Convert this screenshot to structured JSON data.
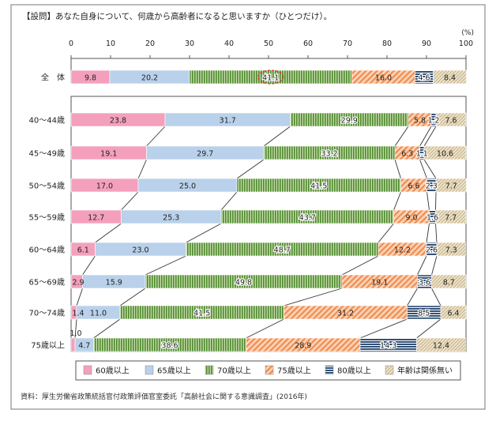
{
  "question": "【設問】あなた自身について、何歳から高齢者になると思いますか（ひとつだけ）。",
  "unit": "(%)",
  "source": "資料：厚生労働省政策統括官付政策評価官室委託「高齢社会に関する意識調査」(2016年)",
  "colors": {
    "c60": "#f4a0bd",
    "c65": "#b9d1ea",
    "c70": "#5e9a3a",
    "c75": "#f3a06f",
    "c80": "#2c4f7c",
    "cAny": "#d9c8a2",
    "border": "#555555"
  },
  "chart_data": {
    "type": "bar",
    "orientation": "horizontal",
    "stacked": true,
    "xlim": [
      0,
      100
    ],
    "xticks": [
      0,
      10,
      20,
      30,
      40,
      50,
      60,
      70,
      80,
      90,
      100
    ],
    "categories": [
      "全　体",
      "40～44歳",
      "45～49歳",
      "50～54歳",
      "55～59歳",
      "60～64歳",
      "65～69歳",
      "70～74歳",
      "75歳以上"
    ],
    "series": [
      {
        "name": "60歳以上",
        "values": [
          9.8,
          23.8,
          19.1,
          17.0,
          12.7,
          6.1,
          2.9,
          1.4,
          1.0
        ]
      },
      {
        "name": "65歳以上",
        "values": [
          20.2,
          31.7,
          29.7,
          25.0,
          25.3,
          23.0,
          15.9,
          11.0,
          4.7
        ]
      },
      {
        "name": "70歳以上",
        "values": [
          41.1,
          29.9,
          33.2,
          41.5,
          43.7,
          48.7,
          49.8,
          41.5,
          38.6
        ]
      },
      {
        "name": "75歳以上",
        "values": [
          16.0,
          5.8,
          6.3,
          6.6,
          9.0,
          12.2,
          19.1,
          31.2,
          28.9
        ]
      },
      {
        "name": "80歳以上",
        "values": [
          4.6,
          1.2,
          1.1,
          2.3,
          1.6,
          2.6,
          3.6,
          8.5,
          14.3
        ]
      },
      {
        "name": "年齢は関係無い",
        "values": [
          8.4,
          7.6,
          10.6,
          7.7,
          7.7,
          7.3,
          8.7,
          6.4,
          12.4
        ]
      }
    ],
    "labels": [
      [
        "9.8",
        "20.2",
        "41.1",
        "16.0",
        "4.6",
        "8.4"
      ],
      [
        "23.8",
        "31.7",
        "29.9",
        "5.8",
        "1.2",
        "7.6"
      ],
      [
        "19.1",
        "29.7",
        "33.2",
        "6.3",
        "1.1",
        "10.6"
      ],
      [
        "17.0",
        "25.0",
        "41.5",
        "6.6",
        "2.3",
        "7.7"
      ],
      [
        "12.7",
        "25.3",
        "43.7",
        "9.0",
        "1.6",
        "7.7"
      ],
      [
        "6.1",
        "23.0",
        "48.7",
        "12.2",
        "2.6",
        "7.3"
      ],
      [
        "2.9",
        "15.9",
        "49.8",
        "19.1",
        "3.6",
        "8.7"
      ],
      [
        "1.4",
        "11.0",
        "41.5",
        "31.2",
        "8.5",
        "6.4"
      ],
      [
        "1.0",
        "4.7",
        "38.6",
        "28.9",
        "14.3",
        "12.4"
      ]
    ]
  }
}
